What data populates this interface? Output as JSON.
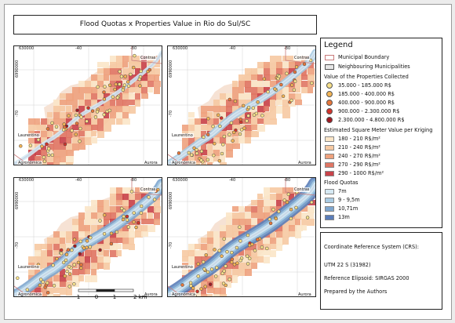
{
  "title": "Flood Quotas x Properties Value in Rio do Sul/SC",
  "map_labels": {
    "x_left": "630000",
    "x_mid": "-40",
    "x_right": "-80",
    "y_top": "6990000",
    "y_mid": "-70",
    "place_contras": "Contras",
    "place_laurentino": "Laurentino",
    "place_agronomica": "Agronômica",
    "place_aurora": "Aurora"
  },
  "scale": {
    "t0": "1",
    "t1": "0",
    "t2": "1",
    "t3": "2 km"
  },
  "legend": {
    "title": "Legend",
    "boundary": {
      "municipal": "Municipal Boundary",
      "neighbouring": "Neighbouring Municipalities"
    },
    "properties_head": "Value of the Properties Collected",
    "properties": [
      {
        "label": "35.000 - 185.000 R$",
        "color": "#f7e08a"
      },
      {
        "label": "185.000 - 400.000 R$",
        "color": "#f3b455"
      },
      {
        "label": "400.000 - 900.000 R$",
        "color": "#e8773b"
      },
      {
        "label": "900.000 - 2.300.000 R$",
        "color": "#d3342c"
      },
      {
        "label": "2.300.000 - 4.800.000 R$",
        "color": "#a11a22"
      }
    ],
    "kriging_head": "Estimated Square Meter Value per Kriging",
    "kriging": [
      {
        "label": "180 - 210 R$/m²",
        "color": "#fbe6c8"
      },
      {
        "label": "210 - 240 R$/m²",
        "color": "#f6c9a2"
      },
      {
        "label": "240 - 270 R$/m²",
        "color": "#eea27e"
      },
      {
        "label": "270 - 290 R$/m²",
        "color": "#e07664"
      },
      {
        "label": "290 - 1000 R$/m²",
        "color": "#c9434a"
      }
    ],
    "flood_head": "Flood Quotas",
    "flood": [
      {
        "label": "7m",
        "color": "#d6e9f3"
      },
      {
        "label": "9 - 9,5m",
        "color": "#a9cbe3"
      },
      {
        "label": "10,71m",
        "color": "#7ea6cf"
      },
      {
        "label": "13m",
        "color": "#5b7db8"
      }
    ]
  },
  "info": {
    "crs_head": "Coordinate Reference System (CRS):",
    "crs": "UTM 22 S (31982)",
    "ellipsoid": "Reference Elipsoid: SIRGAS 2000",
    "credit": "Prepared by the Authors"
  }
}
